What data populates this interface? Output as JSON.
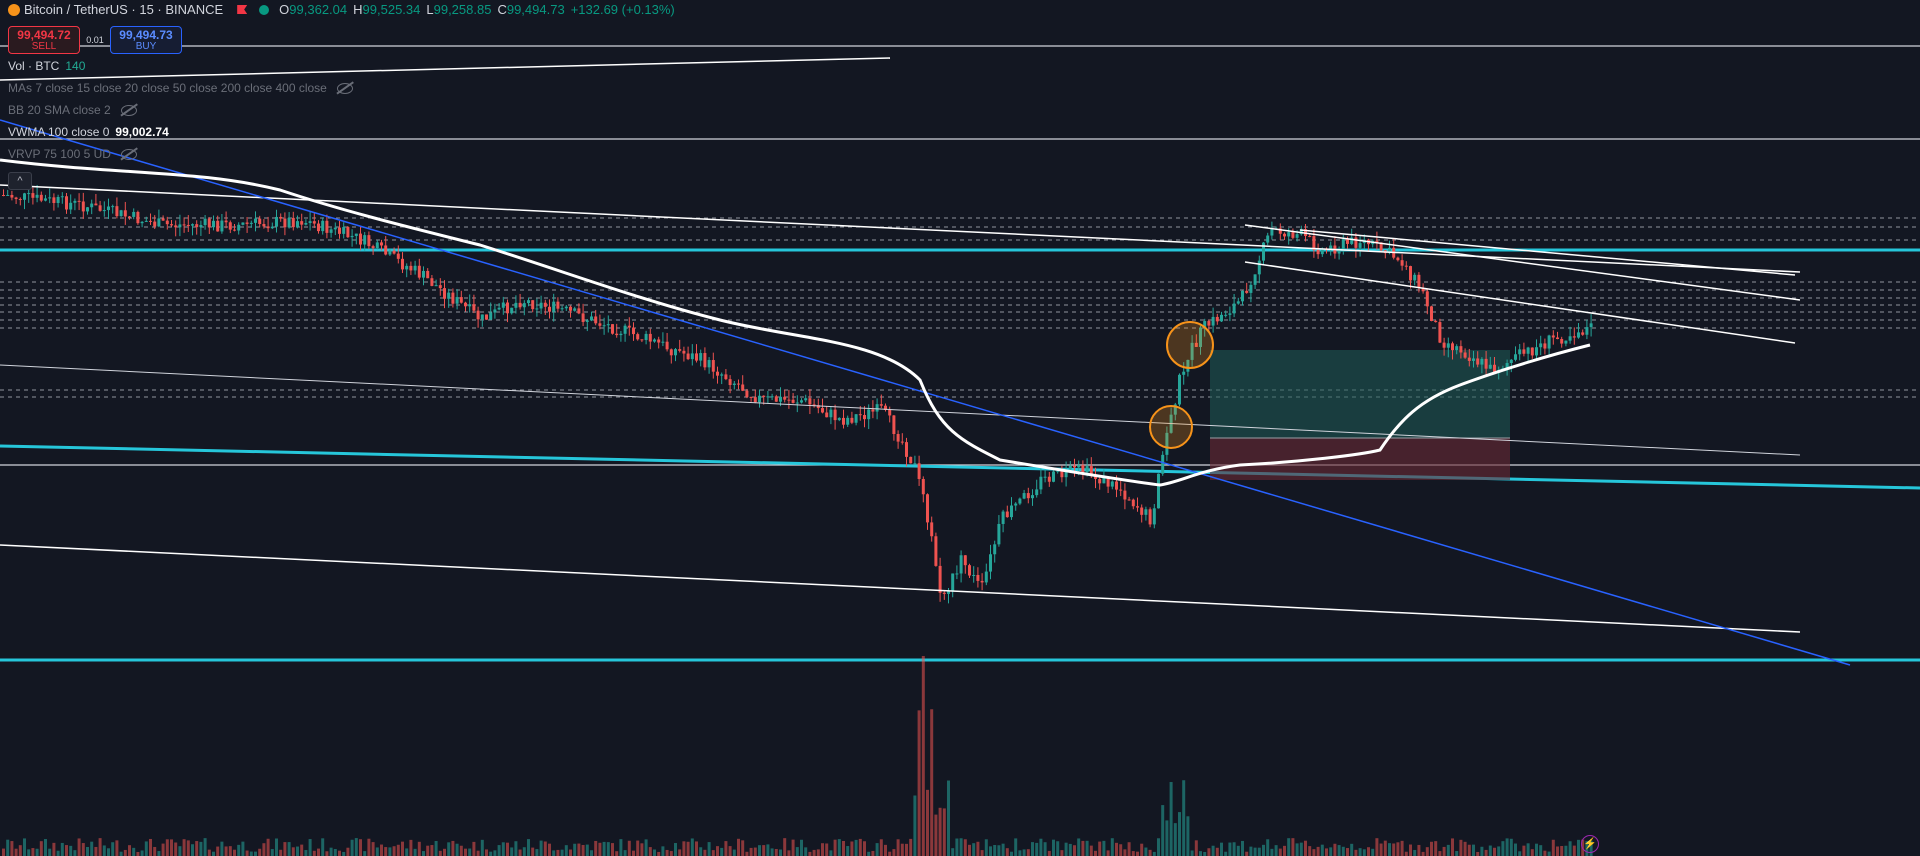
{
  "header": {
    "title": "Bitcoin / TetherUS · 15 · BINANCE",
    "ohlc": [
      {
        "label": "O",
        "value": "99,362.04"
      },
      {
        "label": "H",
        "value": "99,525.34"
      },
      {
        "label": "L",
        "value": "99,258.85"
      },
      {
        "label": "C",
        "value": "99,494.73"
      }
    ],
    "change": "+132.69 (+0.13%)"
  },
  "trade": {
    "sell_price": "99,494.72",
    "sell_label": "SELL",
    "spread": "0.01",
    "buy_price": "99,494.73",
    "buy_label": "BUY"
  },
  "indicators": [
    {
      "name": "Vol · BTC",
      "value": "140"
    },
    {
      "name": "MAs 7 close 15 close 20 close 50 close 200 close 400 close"
    },
    {
      "name": "BB 20 SMA close 2"
    },
    {
      "name": "VWMA 100 close 0",
      "value": "99,002.74"
    },
    {
      "name": "VRVP 75 100 5 UD"
    }
  ],
  "icons": {
    "collapse": "chevron-up-icon",
    "hidden": "eye-off-icon",
    "lightning": "lightning-icon",
    "logo": "bitcoin-logo-icon"
  },
  "colors": {
    "background": "#131722",
    "up": "#26a69a",
    "down": "#ef5350",
    "cyan_level": "#26c6da",
    "blue_trend": "#2962ff",
    "ma_line": "#ffffff",
    "sell": "#f23645",
    "buy": "#2962ff",
    "circle": "#f7931a"
  },
  "chart_data": {
    "type": "candlestick",
    "symbol": "BTCUSDT",
    "timeframe": "15",
    "last_close": 99494.73,
    "y_range_estimate": [
      94500,
      102500
    ],
    "annotations": [
      "2 orange circles",
      "long position box",
      "horizontal cyan levels",
      "trendlines"
    ]
  }
}
